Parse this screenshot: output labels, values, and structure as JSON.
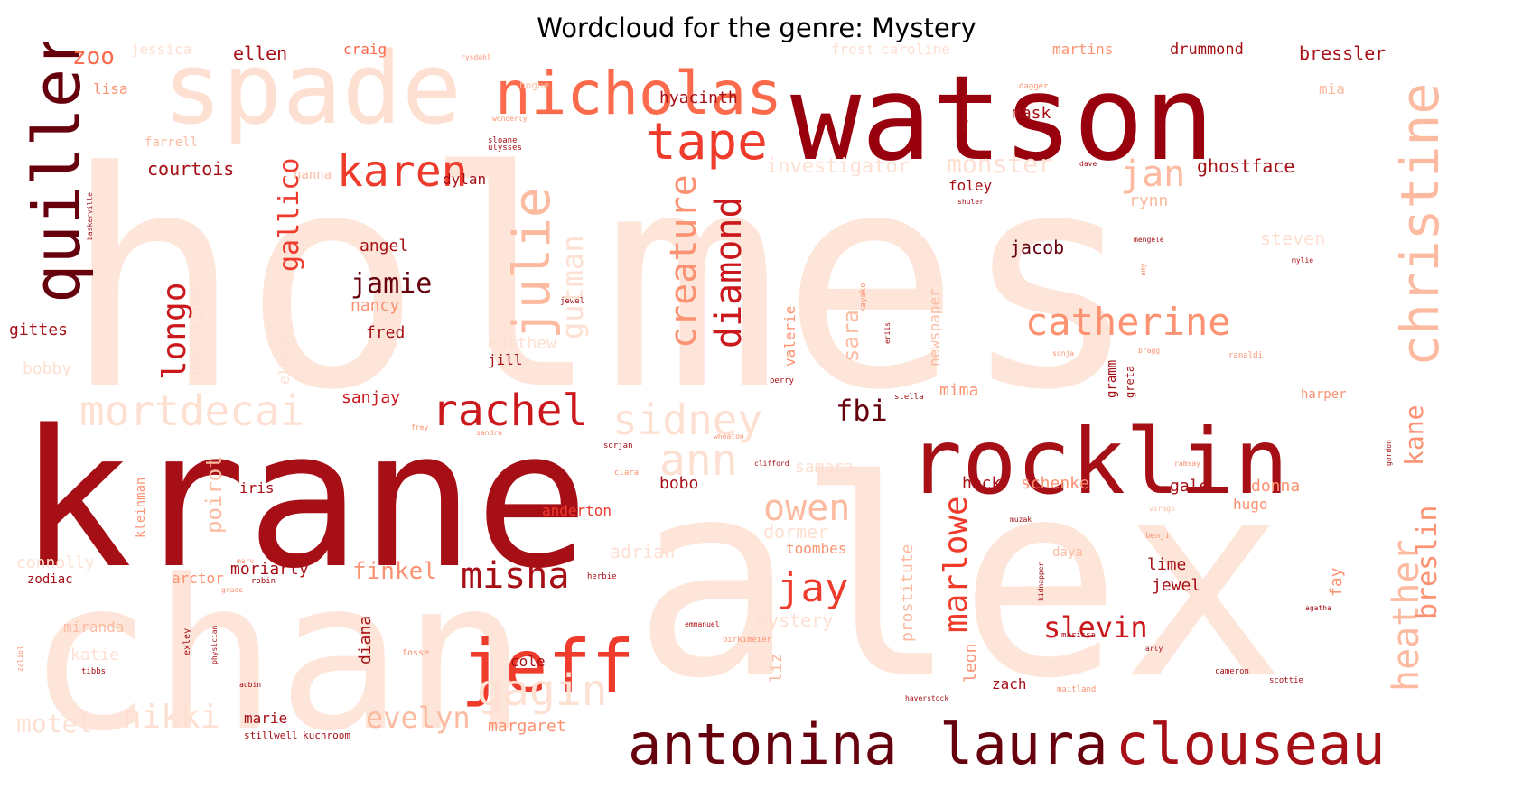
{
  "title": "Wordcloud for the genre: Mystery",
  "palette": {
    "darkest": "#67000d",
    "dark": "#a50f15",
    "red": "#cb181d",
    "mid": "#ef3b2c",
    "salmon": "#fb6a4a",
    "light": "#fc9272",
    "pale": "#fcbba1",
    "faint": "#fee0d2",
    "ghost": "#fff5f0"
  },
  "words": [
    {
      "text": "holmes",
      "color": "#fee5d9"
    },
    {
      "text": "alex",
      "color": "#fee5d9"
    },
    {
      "text": "chan",
      "color": "#fee5d9"
    },
    {
      "text": "krane",
      "color": "#a50f15"
    },
    {
      "text": "watson",
      "color": "#99000d"
    },
    {
      "text": "spade",
      "color": "#fee0d2"
    },
    {
      "text": "rocklin",
      "color": "#a50f15"
    },
    {
      "text": "nicholas",
      "color": "#fb6a4a"
    },
    {
      "text": "quiller",
      "color": "#67000d"
    },
    {
      "text": "christine",
      "color": "#fcbba1"
    },
    {
      "text": "antonina",
      "color": "#67000d"
    },
    {
      "text": "laura",
      "color": "#67000d"
    },
    {
      "text": "clouseau",
      "color": "#a50f15"
    },
    {
      "text": "jeff",
      "color": "#ef3b2c"
    },
    {
      "text": "tape",
      "color": "#ef3b2c"
    },
    {
      "text": "karen",
      "color": "#ef3b2c"
    },
    {
      "text": "julie",
      "color": "#fcbba1"
    },
    {
      "text": "rachel",
      "color": "#cb181d"
    },
    {
      "text": "mortdecai",
      "color": "#fee0d2"
    },
    {
      "text": "sidney",
      "color": "#fee0d2"
    },
    {
      "text": "catherine",
      "color": "#fc9272"
    },
    {
      "text": "gagin",
      "color": "#fee0d2"
    },
    {
      "text": "ann",
      "color": "#fee0d2"
    },
    {
      "text": "diamond",
      "color": "#cb181d"
    },
    {
      "text": "creature",
      "color": "#fc9272"
    },
    {
      "text": "misha",
      "color": "#a50f15"
    },
    {
      "text": "jay",
      "color": "#ef3b2c"
    },
    {
      "text": "owen",
      "color": "#fcbba1"
    },
    {
      "text": "marlowe",
      "color": "#ef3b2c"
    },
    {
      "text": "slevin",
      "color": "#cb181d"
    },
    {
      "text": "jan",
      "color": "#fcbba1"
    },
    {
      "text": "heather",
      "color": "#fcbba1"
    },
    {
      "text": "breslin",
      "color": "#fc9272"
    },
    {
      "text": "kane",
      "color": "#fc9272"
    },
    {
      "text": "gutman",
      "color": "#fee0d2"
    },
    {
      "text": "longo",
      "color": "#cb181d"
    },
    {
      "text": "gallico",
      "color": "#ef3b2c"
    },
    {
      "text": "jamie",
      "color": "#67000d"
    },
    {
      "text": "fbi",
      "color": "#67000d"
    },
    {
      "text": "nikki",
      "color": "#fee0d2"
    },
    {
      "text": "motel",
      "color": "#fee0d2"
    },
    {
      "text": "evelyn",
      "color": "#fcbba1"
    },
    {
      "text": "finkel",
      "color": "#fc9272"
    },
    {
      "text": "monster",
      "color": "#fee0d2"
    },
    {
      "text": "ghostface",
      "color": "#a50f15"
    },
    {
      "text": "courtois",
      "color": "#a50f15"
    },
    {
      "text": "investigator",
      "color": "#fee0d2"
    },
    {
      "text": "hyacinth",
      "color": "#a50f15"
    },
    {
      "text": "mask",
      "color": "#a50f15"
    },
    {
      "text": "zoo",
      "color": "#fb6a4a"
    },
    {
      "text": "ellen",
      "color": "#a50f15"
    },
    {
      "text": "craig",
      "color": "#fb6a4a"
    },
    {
      "text": "bressler",
      "color": "#a50f15"
    },
    {
      "text": "drummond",
      "color": "#a50f15"
    },
    {
      "text": "martins",
      "color": "#fc9272"
    },
    {
      "text": "frost",
      "color": "#fee0d2"
    },
    {
      "text": "caroline",
      "color": "#fee0d2"
    },
    {
      "text": "lisa",
      "color": "#fc9272"
    },
    {
      "text": "jessica",
      "color": "#fee0d2"
    },
    {
      "text": "farrell",
      "color": "#fcbba1"
    },
    {
      "text": "nanna",
      "color": "#fcbba1"
    },
    {
      "text": "dylan",
      "color": "#a50f15"
    },
    {
      "text": "foley",
      "color": "#a50f15"
    },
    {
      "text": "rynn",
      "color": "#fcbba1"
    },
    {
      "text": "steven",
      "color": "#fee0d2"
    },
    {
      "text": "jacob",
      "color": "#67000d"
    },
    {
      "text": "angel",
      "color": "#a50f15"
    },
    {
      "text": "nancy",
      "color": "#fc9272"
    },
    {
      "text": "fred",
      "color": "#a50f15"
    },
    {
      "text": "gittes",
      "color": "#a50f15"
    },
    {
      "text": "bobby",
      "color": "#fee0d2"
    },
    {
      "text": "detectives",
      "color": "#fee0d2"
    },
    {
      "text": "elevator",
      "color": "#fee0d2"
    },
    {
      "text": "matthew",
      "color": "#fee0d2"
    },
    {
      "text": "jill",
      "color": "#a50f15"
    },
    {
      "text": "sanjay",
      "color": "#cb181d"
    },
    {
      "text": "sara",
      "color": "#fcbba1"
    },
    {
      "text": "valerie",
      "color": "#fc9272"
    },
    {
      "text": "newspaper",
      "color": "#fcbba1"
    },
    {
      "text": "mima",
      "color": "#fc9272"
    },
    {
      "text": "samara",
      "color": "#fee0d2"
    },
    {
      "text": "poirot",
      "color": "#fcbba1"
    },
    {
      "text": "iris",
      "color": "#a50f15"
    },
    {
      "text": "kleinman",
      "color": "#fc9272"
    },
    {
      "text": "bobo",
      "color": "#a50f15"
    },
    {
      "text": "dormer",
      "color": "#fee0d2"
    },
    {
      "text": "toombes",
      "color": "#fc9272"
    },
    {
      "text": "heck",
      "color": "#a50f15"
    },
    {
      "text": "schenke",
      "color": "#fc9272"
    },
    {
      "text": "gale",
      "color": "#a50f15"
    },
    {
      "text": "donna",
      "color": "#fc9272"
    },
    {
      "text": "hugo",
      "color": "#fc9272"
    },
    {
      "text": "connolly",
      "color": "#fee0d2"
    },
    {
      "text": "zodiac",
      "color": "#a50f15"
    },
    {
      "text": "arctor",
      "color": "#fc9272"
    },
    {
      "text": "moriarty",
      "color": "#a50f15"
    },
    {
      "text": "anderton",
      "color": "#ef3b2c"
    },
    {
      "text": "adrian",
      "color": "#fee0d2"
    },
    {
      "text": "lime",
      "color": "#a50f15"
    },
    {
      "text": "jewel",
      "color": "#a50f15"
    },
    {
      "text": "fay",
      "color": "#fc9272"
    },
    {
      "text": "prostitute",
      "color": "#fcbba1"
    },
    {
      "text": "miranda",
      "color": "#fcbba1"
    },
    {
      "text": "katie",
      "color": "#fee0d2"
    },
    {
      "text": "diana",
      "color": "#a50f15"
    },
    {
      "text": "mystery",
      "color": "#fee0d2"
    },
    {
      "text": "cole",
      "color": "#a50f15"
    },
    {
      "text": "leon",
      "color": "#fc9272"
    },
    {
      "text": "zach",
      "color": "#a50f15"
    },
    {
      "text": "marie",
      "color": "#a50f15"
    },
    {
      "text": "margaret",
      "color": "#fc9272"
    },
    {
      "text": "liz",
      "color": "#fcbba1"
    },
    {
      "text": "stillwell",
      "color": "#a50f15"
    },
    {
      "text": "kuchroom",
      "color": "#a50f15"
    },
    {
      "text": "dave",
      "color": "#a50f15"
    },
    {
      "text": "shuler",
      "color": "#a50f15"
    },
    {
      "text": "kayako",
      "color": "#fc9272"
    },
    {
      "text": "eriis",
      "color": "#a50f15"
    },
    {
      "text": "greta",
      "color": "#a50f15"
    },
    {
      "text": "gramm",
      "color": "#a50f15"
    },
    {
      "text": "perry",
      "color": "#a50f15"
    },
    {
      "text": "stella",
      "color": "#a50f15"
    },
    {
      "text": "harper",
      "color": "#fc9272"
    },
    {
      "text": "sorjan",
      "color": "#a50f15"
    },
    {
      "text": "clara",
      "color": "#fc9272"
    },
    {
      "text": "ward",
      "color": "#a50f15"
    },
    {
      "text": "fosse",
      "color": "#fc9272"
    },
    {
      "text": "marissa",
      "color": "#a50f15"
    },
    {
      "text": "agatha",
      "color": "#a50f15"
    },
    {
      "text": "birkimeier",
      "color": "#fc9272"
    },
    {
      "text": "physician",
      "color": "#a50f15"
    },
    {
      "text": "exley",
      "color": "#a50f15"
    },
    {
      "text": "tibbs",
      "color": "#a50f15"
    },
    {
      "text": "aubin",
      "color": "#a50f15"
    },
    {
      "text": "zaliol",
      "color": "#fc9272"
    },
    {
      "text": "grade",
      "color": "#fc9272"
    },
    {
      "text": "marv",
      "color": "#fc9272"
    },
    {
      "text": "robin",
      "color": "#a50f15"
    },
    {
      "text": "baskerville",
      "color": "#a50f15"
    },
    {
      "text": "bogue",
      "color": "#fcbba1"
    },
    {
      "text": "sloane",
      "color": "#a50f15"
    },
    {
      "text": "ulysses",
      "color": "#a50f15"
    },
    {
      "text": "wonderly",
      "color": "#fc9272"
    },
    {
      "text": "rysdahl",
      "color": "#fc9272"
    },
    {
      "text": "dagger",
      "color": "#fc9272"
    },
    {
      "text": "magnussen",
      "color": "#a50f15"
    },
    {
      "text": "mia",
      "color": "#fcbba1"
    },
    {
      "text": "wheaton",
      "color": "#fc9272"
    },
    {
      "text": "haverstock",
      "color": "#a50f15"
    },
    {
      "text": "maitland",
      "color": "#fc9272"
    },
    {
      "text": "cameron",
      "color": "#a50f15"
    },
    {
      "text": "scottie",
      "color": "#a50f15"
    },
    {
      "text": "herbie",
      "color": "#a50f15"
    },
    {
      "text": "emmanuel",
      "color": "#a50f15"
    },
    {
      "text": "kidnapper",
      "color": "#a50f15"
    },
    {
      "text": "benji",
      "color": "#fc9272"
    },
    {
      "text": "ranaldi",
      "color": "#fc9272"
    },
    {
      "text": "ramsay",
      "color": "#fc9272"
    },
    {
      "text": "arly",
      "color": "#a50f15"
    },
    {
      "text": "daya",
      "color": "#fcbba1"
    },
    {
      "text": "muzak",
      "color": "#a50f15"
    },
    {
      "text": "bragg",
      "color": "#fc9272"
    },
    {
      "text": "sonja",
      "color": "#fc9272"
    },
    {
      "text": "sandra",
      "color": "#fc9272"
    },
    {
      "text": "frey",
      "color": "#fc9272"
    },
    {
      "text": "clifford",
      "color": "#a50f15"
    },
    {
      "text": "virago",
      "color": "#fcbba1"
    },
    {
      "text": "gordon",
      "color": "#a50f15"
    },
    {
      "text": "mengele",
      "color": "#a50f15"
    },
    {
      "text": "mylie",
      "color": "#a50f15"
    },
    {
      "text": "amy",
      "color": "#fc9272"
    },
    {
      "text": "jewel",
      "color": "#a50f15"
    }
  ]
}
